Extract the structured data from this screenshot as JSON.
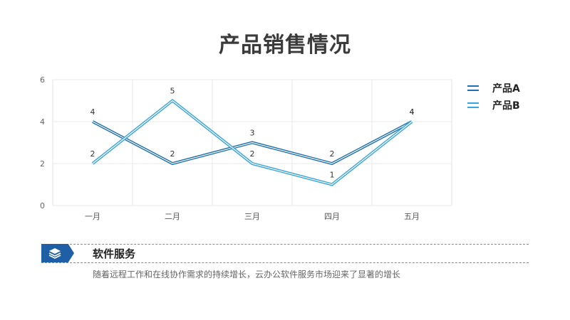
{
  "page": {
    "title": "产品销售情况"
  },
  "chart_data": {
    "type": "line",
    "categories": [
      "一月",
      "二月",
      "三月",
      "四月",
      "五月"
    ],
    "series": [
      {
        "name": "产品A",
        "values": [
          4,
          2,
          3,
          2,
          4
        ],
        "color": "#1f6fb2"
      },
      {
        "name": "产品B",
        "values": [
          2,
          5,
          2,
          1,
          4
        ],
        "color": "#3aa3e0"
      }
    ],
    "ylim": [
      0,
      6
    ],
    "yticks": [
      0,
      2,
      4,
      6
    ],
    "grid": true,
    "legend": "right",
    "data_labels": true
  },
  "service": {
    "icon": "layers-icon",
    "title": "软件服务",
    "description": "随着远程工作和在线协作需求的持续增长，云办公软件服务市场迎来了显著的增长"
  },
  "colors": {
    "accent": "#1f5fa6",
    "series_a": "#1f6fb2",
    "series_b": "#3aa3e0"
  }
}
